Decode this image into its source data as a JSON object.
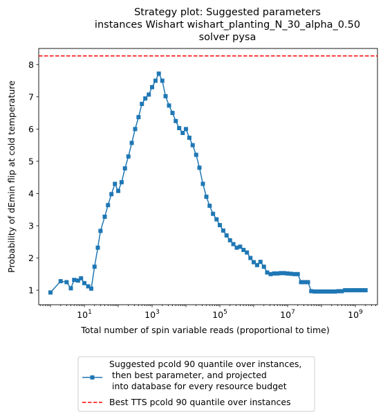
{
  "chart_data": {
    "type": "line",
    "title": [
      "Strategy plot: Suggested parameters",
      "instances Wishart wishart_planting_N_30_alpha_0.50",
      "solver pysa"
    ],
    "xlabel": "Total number of spin variable reads (proportional to time)",
    "ylabel": "Probability of dEmin flip at cold temperature",
    "xscale": "log",
    "xlim": [
      0.45,
      4500000000
    ],
    "ylim": [
      0.55,
      8.5
    ],
    "x_ticks": [
      {
        "base": "10",
        "exp": "1",
        "value": 10
      },
      {
        "base": "10",
        "exp": "3",
        "value": 1000
      },
      {
        "base": "10",
        "exp": "5",
        "value": 100000
      },
      {
        "base": "10",
        "exp": "7",
        "value": 10000000
      },
      {
        "base": "10",
        "exp": "9",
        "value": 1000000000
      }
    ],
    "y_ticks": [
      "1",
      "2",
      "3",
      "4",
      "5",
      "6",
      "7",
      "8"
    ],
    "grid": false,
    "legend_position": "bottom-center-outside",
    "series": [
      {
        "name": "Suggested pcold 90 quantile over instances,\n  then best parameter, and projected\n  into database for every resource budget",
        "color": "#1f77b4",
        "marker": "square",
        "x": [
          1,
          2,
          3,
          4,
          5,
          6.5,
          8,
          10,
          13,
          16,
          20,
          25,
          30,
          40,
          50,
          63,
          80,
          100,
          126,
          158,
          200,
          251,
          316,
          398,
          500,
          630,
          800,
          1000,
          1260,
          1580,
          2000,
          2500,
          3160,
          4000,
          5000,
          6300,
          8000,
          10000,
          12600,
          15800,
          20000,
          25000,
          31600,
          40000,
          50000,
          63000,
          80000,
          100000,
          126000,
          158000,
          200000,
          251000,
          316000,
          398000,
          500000,
          630000,
          800000,
          1000000,
          1260000,
          1580000,
          2000000,
          2500000,
          3160000,
          4000000,
          5000000,
          6300000,
          8000000,
          10000000,
          12600000,
          15800000,
          20000000,
          25000000,
          31600000,
          40000000,
          50000000,
          63000000,
          80000000,
          100000000,
          126000000,
          158000000,
          200000000,
          251000000,
          316000000,
          398000000,
          500000000,
          630000000,
          800000000,
          1000000000,
          1260000000,
          1580000000,
          2000000000
        ],
        "y": [
          0.93,
          1.28,
          1.25,
          1.06,
          1.32,
          1.3,
          1.37,
          1.22,
          1.12,
          1.05,
          1.73,
          2.32,
          2.84,
          3.28,
          3.64,
          3.98,
          4.3,
          4.08,
          4.35,
          4.78,
          5.15,
          5.57,
          6.0,
          6.37,
          6.78,
          6.95,
          7.07,
          7.3,
          7.5,
          7.72,
          7.5,
          7.02,
          6.73,
          6.5,
          6.25,
          6.03,
          5.88,
          6.0,
          5.73,
          5.5,
          5.2,
          4.8,
          4.3,
          3.9,
          3.62,
          3.37,
          3.2,
          3.02,
          2.85,
          2.7,
          2.55,
          2.43,
          2.32,
          2.35,
          2.25,
          2.17,
          2.0,
          1.87,
          1.78,
          1.88,
          1.73,
          1.55,
          1.5,
          1.52,
          1.52,
          1.53,
          1.53,
          1.52,
          1.51,
          1.5,
          1.5,
          1.25,
          1.25,
          1.25,
          0.97,
          0.96,
          0.96,
          0.96,
          0.96,
          0.96,
          0.96,
          0.96,
          0.97,
          0.97,
          1.0,
          1.0,
          1.0,
          1.0,
          1.0,
          1.0,
          1.0
        ]
      }
    ],
    "reference_lines": [
      {
        "name": "Best TTS pcold 90 quantile over instances",
        "orientation": "horizontal",
        "y": 8.27,
        "color": "#ff0000",
        "style": "dashed"
      }
    ]
  }
}
